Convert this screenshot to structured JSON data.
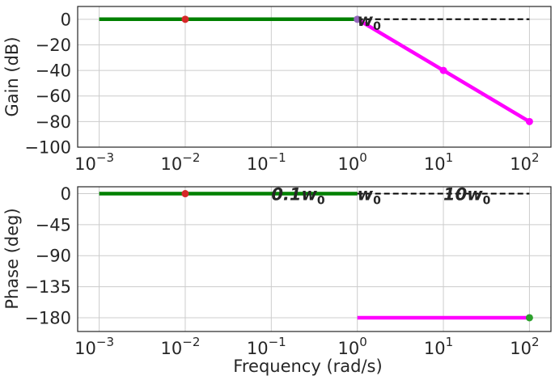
{
  "chart_data": [
    {
      "type": "line",
      "panel": "gain",
      "xscale": "log",
      "xlim": [
        0.001,
        100
      ],
      "ylim": [
        -100,
        10
      ],
      "yticks": [
        0,
        -20,
        -40,
        -60,
        -80,
        -100
      ],
      "ytick_labels": [
        "0",
        "−20",
        "−40",
        "−60",
        "−80",
        "−100"
      ],
      "ylabel": "Gain (dB)",
      "xlabel": "",
      "grid": true,
      "series": [
        {
          "color": "#008000",
          "style": "solid",
          "width": 4.5,
          "x": [
            0.001,
            1
          ],
          "y": [
            0,
            0
          ]
        },
        {
          "color": "#ff00ff",
          "style": "solid",
          "width": 4.5,
          "x": [
            1,
            10,
            100
          ],
          "y": [
            0,
            -40,
            -80
          ]
        },
        {
          "color": "#000000",
          "style": "dashed",
          "width": 2,
          "x": [
            1,
            100
          ],
          "y": [
            0,
            0
          ]
        }
      ],
      "points": [
        {
          "x": 0.01,
          "y": 0,
          "color": "#d62728"
        },
        {
          "x": 1,
          "y": 0,
          "color": "#9467bd"
        },
        {
          "x": 10,
          "y": -40,
          "color": "#ff00ff"
        },
        {
          "x": 100,
          "y": -80,
          "color": "#ff00ff"
        }
      ],
      "annotations": [
        {
          "x": 1,
          "y": 0,
          "base": "w",
          "sub": "0"
        }
      ]
    },
    {
      "type": "line",
      "panel": "phase",
      "xscale": "log",
      "xlim": [
        0.001,
        100
      ],
      "ylim": [
        -200,
        10
      ],
      "yticks": [
        0,
        -45,
        -90,
        -135,
        -180
      ],
      "ytick_labels": [
        "0",
        "−45",
        "−90",
        "−135",
        "−180"
      ],
      "ylabel": "Phase (deg)",
      "xlabel": "Frequency (rad/s)",
      "grid": true,
      "series": [
        {
          "color": "#008000",
          "style": "solid",
          "width": 4.5,
          "x": [
            0.001,
            1
          ],
          "y": [
            0,
            0
          ]
        },
        {
          "color": "#ff00ff",
          "style": "solid",
          "width": 4.5,
          "x": [
            1,
            100
          ],
          "y": [
            -180,
            -180
          ]
        },
        {
          "color": "#000000",
          "style": "dashed",
          "width": 2,
          "x": [
            1,
            100
          ],
          "y": [
            0,
            0
          ]
        }
      ],
      "points": [
        {
          "x": 0.01,
          "y": 0,
          "color": "#d62728"
        },
        {
          "x": 100,
          "y": -180,
          "color": "#2ca02c"
        }
      ],
      "annotations": [
        {
          "x": 0.1,
          "y": 0,
          "base": "0.1w",
          "sub": "0"
        },
        {
          "x": 1,
          "y": 0,
          "base": "w",
          "sub": "0"
        },
        {
          "x": 10,
          "y": 0,
          "base": "10w",
          "sub": "0"
        }
      ]
    }
  ],
  "xtick_values": [
    0.001,
    0.01,
    0.1,
    1,
    10,
    100
  ],
  "xtick_labels": [
    {
      "base": "10",
      "exp": "−3"
    },
    {
      "base": "10",
      "exp": "−2"
    },
    {
      "base": "10",
      "exp": "−1"
    },
    {
      "base": "10",
      "exp": "0"
    },
    {
      "base": "10",
      "exp": "1"
    },
    {
      "base": "10",
      "exp": "2"
    }
  ]
}
